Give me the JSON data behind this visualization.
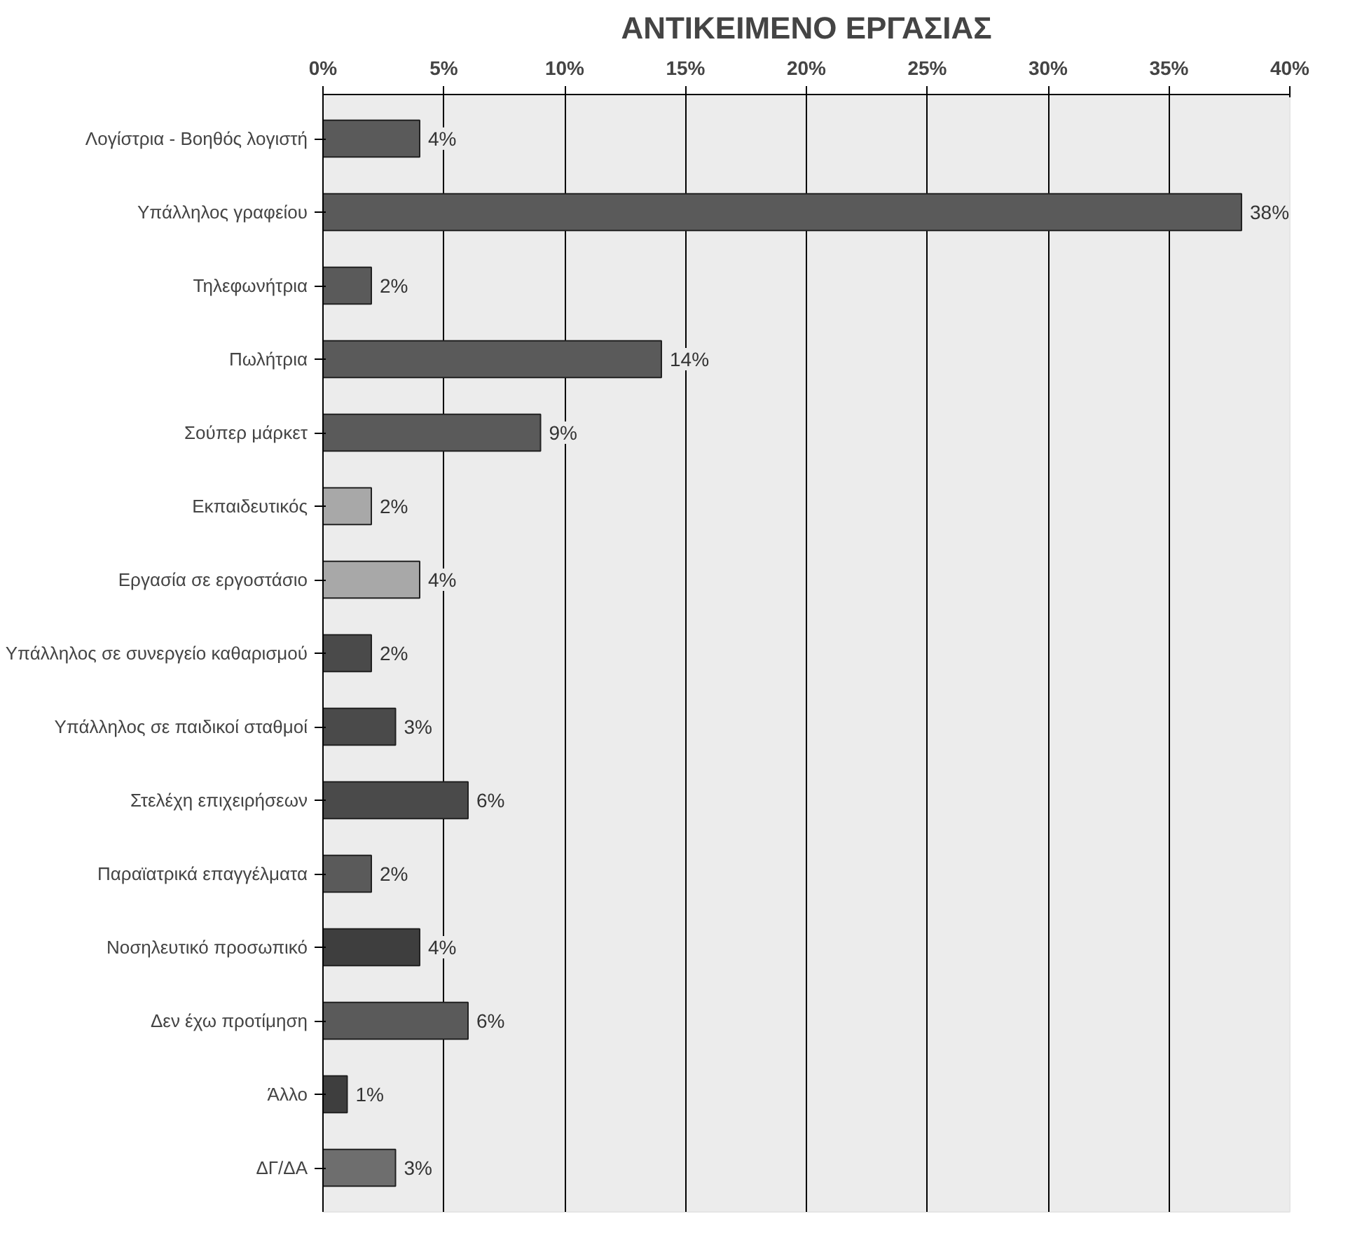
{
  "chart_data": {
    "type": "bar",
    "orientation": "horizontal",
    "title": "ΑΝΤΙΚΕΙΜΕΝΟ ΕΡΓΑΣΙΑΣ",
    "categories": [
      "Λογίστρια - Βοηθός λογιστή",
      "Υπάλληλος γραφείου",
      "Τηλεφωνήτρια",
      "Πωλήτρια",
      "Σούπερ μάρκετ",
      "Εκπαιδευτικός",
      "Εργασία σε εργοστάσιο",
      "Υπάλληλος σε συνεργείο καθαρισμού",
      "Υπάλληλος σε παιδικοί σταθμοί",
      "Στελέχη επιχειρήσεων",
      "Παραϊατρικά επαγγέλματα",
      "Νοσηλευτικό προσωπικό",
      "Δεν έχω προτίμηση",
      "Άλλο",
      "ΔΓ/ΔΑ"
    ],
    "values": [
      4,
      38,
      2,
      14,
      9,
      2,
      4,
      2,
      3,
      6,
      2,
      4,
      6,
      1,
      3
    ],
    "value_labels": [
      "4%",
      "38%",
      "2%",
      "14%",
      "9%",
      "2%",
      "4%",
      "2%",
      "3%",
      "6%",
      "2%",
      "4%",
      "6%",
      "1%",
      "3%"
    ],
    "colors": [
      "#5a5a5a",
      "#5a5a5a",
      "#5a5a5a",
      "#5a5a5a",
      "#5a5a5a",
      "#a8a8a8",
      "#a8a8a8",
      "#4a4a4a",
      "#4a4a4a",
      "#4a4a4a",
      "#5a5a5a",
      "#3e3e3e",
      "#5a5a5a",
      "#3e3e3e",
      "#6e6e6e"
    ],
    "xlim": [
      0,
      40
    ],
    "xticks": [
      {
        "value": 0,
        "label": "0%"
      },
      {
        "value": 5,
        "label": "5%"
      },
      {
        "value": 10,
        "label": "10%"
      },
      {
        "value": 15,
        "label": "15%"
      },
      {
        "value": 20,
        "label": "20%"
      },
      {
        "value": 25,
        "label": "25%"
      },
      {
        "value": 30,
        "label": "30%"
      },
      {
        "value": 35,
        "label": "35%"
      },
      {
        "value": 40,
        "label": "40%"
      }
    ],
    "grid": "x"
  }
}
